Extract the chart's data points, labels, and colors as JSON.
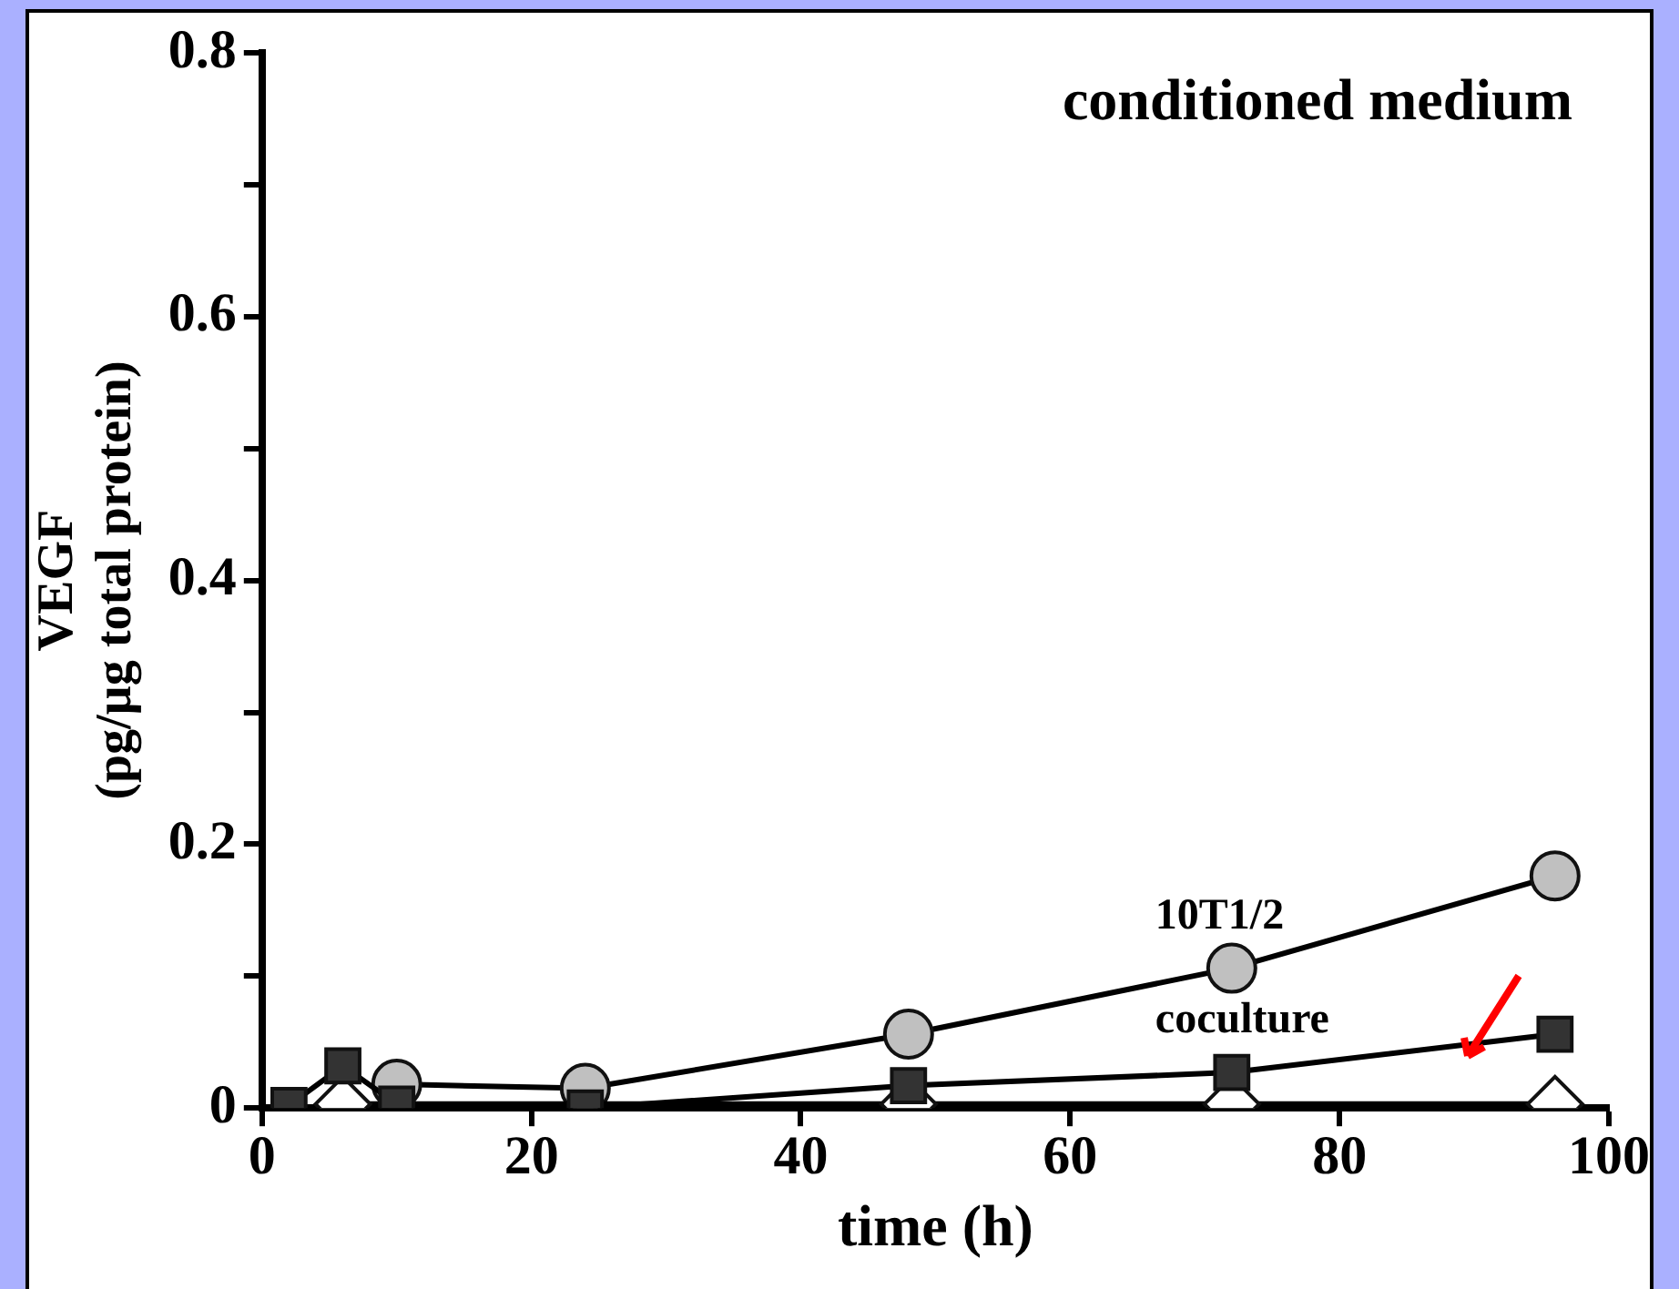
{
  "chart_data": {
    "type": "line",
    "xlabel": "time (h)",
    "ylabel": "VEGF\n(pg/µg total protein)",
    "annotations": [
      "conditioned medium"
    ],
    "x": [
      2,
      6,
      10,
      24,
      48,
      72,
      96
    ],
    "series": [
      {
        "name": "10T1/2",
        "color": "#c0c0c0",
        "marker": "circle",
        "values": [
          null,
          null,
          0.018,
          0.015,
          0.056,
          0.106,
          0.176
        ]
      },
      {
        "color": "#ffffff",
        "marker": "diamond",
        "values": [
          null,
          0.003,
          null,
          null,
          0.003,
          0.003,
          0.003
        ]
      },
      {
        "name": "coculture",
        "color": "#333333",
        "marker": "square",
        "values": [
          0.002,
          0.032,
          0.003,
          0,
          0.017,
          0.027,
          0.056
        ]
      }
    ],
    "xlim": [
      0,
      100
    ],
    "xticks": [
      0,
      20,
      40,
      60,
      80,
      100
    ],
    "ylim": [
      0,
      0.8
    ],
    "yticks": [
      0,
      {
        "value": 0.1,
        "label": null
      },
      0.2,
      {
        "value": 0.3,
        "label": null
      },
      0.4,
      {
        "value": 0.5,
        "label": null
      },
      0.6,
      {
        "value": 0.7,
        "label": null
      },
      0.8
    ],
    "grid": false,
    "legend": false
  }
}
